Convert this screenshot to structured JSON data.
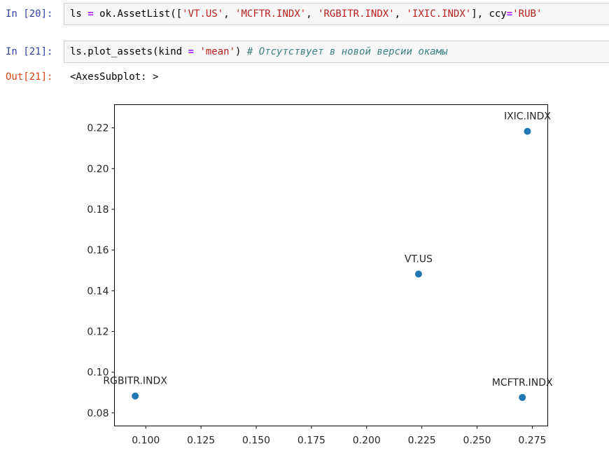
{
  "cells": [
    {
      "prompt": "In [20]:",
      "code": {
        "var": "ls",
        "assign": " = ",
        "call": "ok.AssetList([",
        "s1": "'VT.US'",
        "c1": ", ",
        "s2": "'MCFTR.INDX'",
        "c2": ", ",
        "s3": "'RGBITR.INDX'",
        "c3": ", ",
        "s4": "'IXIC.INDX'",
        "close": "], ccy",
        "eq": "=",
        "s5": "'RUB'"
      }
    },
    {
      "prompt": "In [21]:",
      "code": {
        "call": "ls.plot_assets(kind ",
        "eq": "=",
        "space": " ",
        "s1": "'mean'",
        "close": ") ",
        "comment": "# Отсутствует в новой версии окамы"
      }
    }
  ],
  "output": {
    "prompt": "Out[21]:",
    "text": "<AxesSubplot: >"
  },
  "chart_data": {
    "type": "scatter",
    "title": "",
    "xlabel": "",
    "ylabel": "",
    "xlim": [
      0.0858,
      0.282
    ],
    "ylim": [
      0.0736,
      0.2314
    ],
    "x_ticks": [
      "0.100",
      "0.125",
      "0.150",
      "0.175",
      "0.200",
      "0.225",
      "0.250",
      "0.275"
    ],
    "x_tick_values": [
      0.1,
      0.125,
      0.15,
      0.175,
      0.2,
      0.225,
      0.25,
      0.275
    ],
    "y_ticks": [
      "0.08",
      "0.10",
      "0.12",
      "0.14",
      "0.16",
      "0.18",
      "0.20",
      "0.22"
    ],
    "y_tick_values": [
      0.08,
      0.1,
      0.12,
      0.14,
      0.16,
      0.18,
      0.2,
      0.22
    ],
    "grid": false,
    "marker_color": "#1f77b4",
    "points": [
      {
        "label": "VT.US",
        "x": 0.2235,
        "y": 0.1482
      },
      {
        "label": "MCFTR.INDX",
        "x": 0.2705,
        "y": 0.0876
      },
      {
        "label": "RGBITR.INDX",
        "x": 0.0952,
        "y": 0.0883
      },
      {
        "label": "IXIC.INDX",
        "x": 0.2728,
        "y": 0.2183
      }
    ]
  }
}
